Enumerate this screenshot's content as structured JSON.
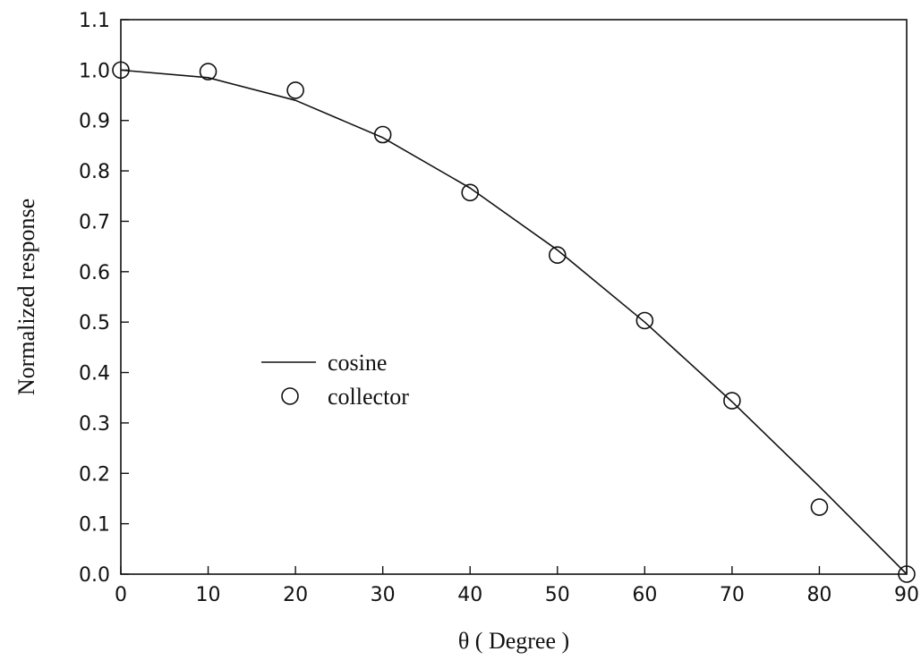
{
  "chart_data": {
    "type": "line",
    "title": "",
    "xlabel": "θ ( Degree )",
    "ylabel": "Normalized response",
    "xlim": [
      0,
      90
    ],
    "ylim": [
      0.0,
      1.1
    ],
    "xticks": [
      "0",
      "10",
      "20",
      "30",
      "40",
      "50",
      "60",
      "70",
      "80",
      "90"
    ],
    "yticks": [
      "0.0",
      "0.1",
      "0.2",
      "0.3",
      "0.4",
      "0.5",
      "0.6",
      "0.7",
      "0.8",
      "0.9",
      "1.0",
      "1.1"
    ],
    "grid": false,
    "legend_position": "center-left",
    "series": [
      {
        "name": "cosine",
        "style": "solid-line",
        "x": [
          0,
          10,
          20,
          30,
          40,
          50,
          60,
          70,
          80,
          90
        ],
        "y": [
          1.0,
          0.985,
          0.94,
          0.866,
          0.766,
          0.643,
          0.5,
          0.342,
          0.174,
          0.0
        ]
      },
      {
        "name": "collector",
        "style": "open-circle",
        "x": [
          0,
          10,
          20,
          30,
          40,
          50,
          60,
          70,
          80,
          90
        ],
        "y": [
          1.0,
          0.997,
          0.96,
          0.872,
          0.757,
          0.633,
          0.503,
          0.344,
          0.133,
          0.0
        ]
      }
    ]
  }
}
